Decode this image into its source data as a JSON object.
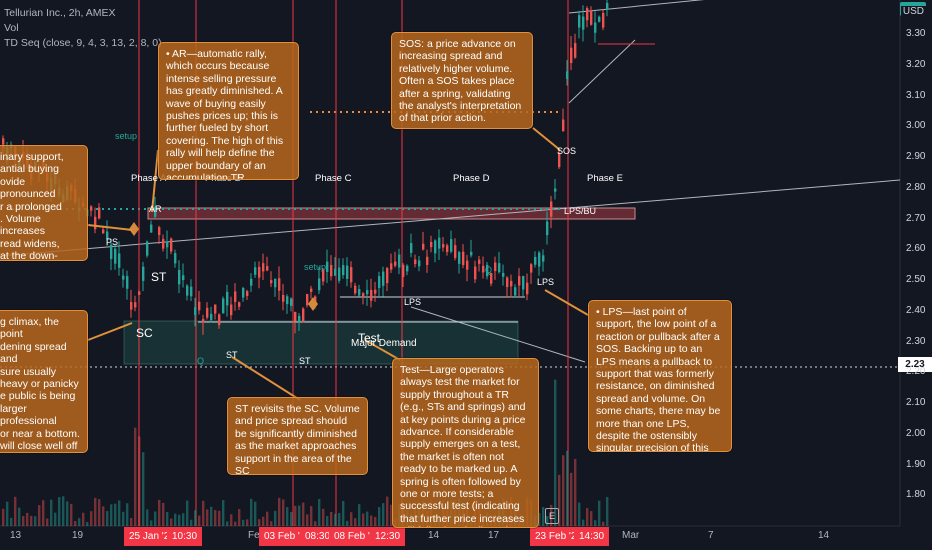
{
  "header": {
    "title": "Tellurian Inc., 2h, AMEX",
    "vol_label": "Vol",
    "indicator": "TD Seq (close, 9, 4, 3, 13, 2, 8, 0)",
    "currency": "USD",
    "current_price": "2.23"
  },
  "y_axis": [
    "3.30",
    "3.20",
    "3.10",
    "3.00",
    "2.90",
    "2.80",
    "2.70",
    "2.60",
    "2.50",
    "2.40",
    "2.30",
    "2.20",
    "2.10",
    "2.00",
    "1.90",
    "1.80"
  ],
  "x_axis": {
    "ticks": [
      "13",
      "19",
      "Fe",
      "14",
      "17",
      "Mar",
      "7",
      "14"
    ],
    "highlights": [
      "25 Jan '22",
      "10:30",
      "03 Feb '22",
      "08:30",
      "08 Feb '22",
      "12:30",
      "23 Feb '22",
      "14:30"
    ]
  },
  "phases": [
    "Phase A",
    "Phase B",
    "Phase C",
    "Phase D",
    "Phase E"
  ],
  "labels": {
    "ps": "PS",
    "sc": "SC",
    "ar": "AR",
    "st1": "ST",
    "st2": "ST",
    "st3": "ST",
    "test": "Test",
    "lps1": "LPS",
    "lps2": "LPS",
    "sos": "SOS",
    "lps_bu": "LPS/BU",
    "major_demand": "Major Demand",
    "q1": "Q",
    "q2": "Q",
    "setup1": "setup",
    "setup2": "setup",
    "e_marker": "E"
  },
  "notes": {
    "ps_note": "inary support,\nantial buying\novide pronounced\nr a prolonged\n. Volume increases\nread widens,\nat the down-move\nroaching its end.",
    "sc_note": "g climax, the point\ndening spread and\nsure usually\nheavy or panicky\ne public is being\nlarger professional\nor near a bottom.\nwill close well off\nSC, reflecting the\nhese large interests.",
    "ar_note": "• AR—automatic rally, which occurs because intense selling pressure has greatly diminished. A wave of buying easily pushes prices up; this is further fueled by short covering. The high of this rally will help define the upper boundary of an accumulation TR",
    "st_note": "ST revisits the SC. Volume and price spread should be significantly diminished as the market approaches support in the area of the SC",
    "sos_note": "SOS: a price advance on increasing spread and relatively higher volume. Often a SOS takes place after a spring, validating the analyst's interpretation of that prior action.",
    "test_note": "Test—Large operators always test the market for supply throughout a TR (e.g., STs and springs) and at key points during a price advance. If considerable supply emerges on a test, the market is often not ready to be marked up. A spring is often followed by one or more tests; a successful test (indicating that further price increases will follow) typically makes a higher low on lesser volume.",
    "lps_note": "• LPS—last point of support, the low point of a reaction or pullback after a SOS. Backing up to an LPS means a pullback to support that was formerly resistance, on diminished spread and volume. On some charts, there may be more than one LPS, despite the ostensibly singular precision of this term."
  },
  "colors": {
    "background": "#131722",
    "up": "#26a69a",
    "down": "#ef5350",
    "note_fill": "#b7671c",
    "highlight": "#f23645"
  }
}
